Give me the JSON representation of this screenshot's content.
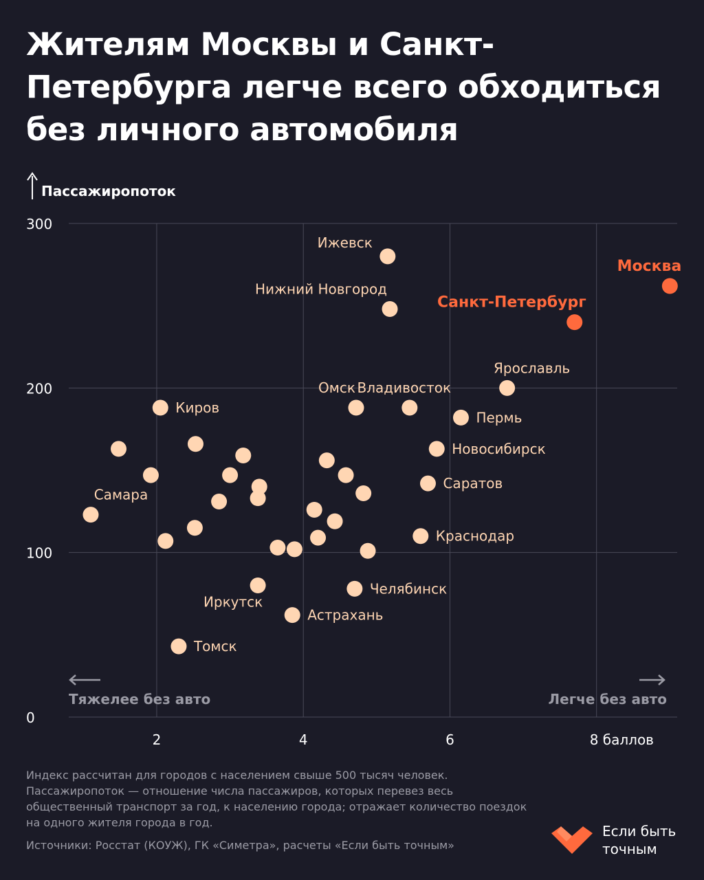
{
  "title": "Жителям Москвы и Санкт-Петербурга легче всего обходиться без личного автомобиля",
  "colors": {
    "background": "#1b1b27",
    "point": "#ffd6b3",
    "highlight": "#ff6a3d",
    "grid": "#4a4a58",
    "muted": "#9b9ba5"
  },
  "footnote": "Индекс рассчитан для городов с населением свыше 500 тысяч человек. Пассажиропоток — отношение числа пассажиров, которых перевез весь общественный транспорт за год, к населению города; отражает количество поездок на одного жителя города в год.",
  "source": "Источники: Росстат (КОУЖ), ГК «Симетра», расчеты «Если быть точным»",
  "brand": "Если быть точным",
  "chart_data": {
    "type": "scatter",
    "ylabel": "Пассажиропоток",
    "xlim": [
      0.8,
      9.1
    ],
    "ylim": [
      0,
      300
    ],
    "x_ticks": [
      {
        "value": 2,
        "label": "2"
      },
      {
        "value": 4,
        "label": "4"
      },
      {
        "value": 6,
        "label": "6"
      },
      {
        "value": 8,
        "label": "8 баллов"
      }
    ],
    "y_ticks": [
      {
        "value": 0,
        "label": "0"
      },
      {
        "value": 100,
        "label": "100"
      },
      {
        "value": 200,
        "label": "200"
      },
      {
        "value": 300,
        "label": "300"
      }
    ],
    "grid": true,
    "annotations": {
      "left": "Тяжелее без авто",
      "right": "Легче без авто"
    },
    "points": [
      {
        "x": 9.0,
        "y": 262,
        "label": "Москва",
        "highlight": true,
        "pos": "above"
      },
      {
        "x": 7.7,
        "y": 240,
        "label": "Санкт-Петербург",
        "highlight": true,
        "pos": "above"
      },
      {
        "x": 5.15,
        "y": 280,
        "label": "Ижевск",
        "pos": "left"
      },
      {
        "x": 5.18,
        "y": 248,
        "label": "Нижний Новгород",
        "pos": "above"
      },
      {
        "x": 6.78,
        "y": 200,
        "label": "Ярославль",
        "pos": "above"
      },
      {
        "x": 4.72,
        "y": 188,
        "label": "Омск",
        "pos": "above"
      },
      {
        "x": 5.45,
        "y": 188,
        "label": "Владивосток",
        "pos": "above"
      },
      {
        "x": 6.15,
        "y": 182,
        "label": "Пермь",
        "pos": "right"
      },
      {
        "x": 2.05,
        "y": 188,
        "label": "Киров",
        "pos": "right"
      },
      {
        "x": 5.82,
        "y": 163,
        "label": "Новосибирск",
        "pos": "right"
      },
      {
        "x": 5.7,
        "y": 142,
        "label": "Саратов",
        "pos": "right"
      },
      {
        "x": 1.1,
        "y": 123,
        "label": "Самара",
        "pos": "above"
      },
      {
        "x": 5.6,
        "y": 110,
        "label": "Краснодар",
        "pos": "right"
      },
      {
        "x": 4.7,
        "y": 78,
        "label": "Челябинск",
        "pos": "right"
      },
      {
        "x": 3.38,
        "y": 80,
        "label": "Иркутск",
        "pos": "below"
      },
      {
        "x": 3.85,
        "y": 62,
        "label": "Астрахань",
        "pos": "right"
      },
      {
        "x": 2.3,
        "y": 43,
        "label": "Томск",
        "pos": "right"
      },
      {
        "x": 1.48,
        "y": 163,
        "label": ""
      },
      {
        "x": 2.53,
        "y": 166,
        "label": ""
      },
      {
        "x": 1.92,
        "y": 147,
        "label": ""
      },
      {
        "x": 3.18,
        "y": 159,
        "label": ""
      },
      {
        "x": 3.0,
        "y": 147,
        "label": ""
      },
      {
        "x": 3.4,
        "y": 140,
        "label": ""
      },
      {
        "x": 3.38,
        "y": 133,
        "label": ""
      },
      {
        "x": 2.85,
        "y": 131,
        "label": ""
      },
      {
        "x": 2.52,
        "y": 115,
        "label": ""
      },
      {
        "x": 2.12,
        "y": 107,
        "label": ""
      },
      {
        "x": 3.65,
        "y": 103,
        "label": ""
      },
      {
        "x": 3.88,
        "y": 102,
        "label": ""
      },
      {
        "x": 4.32,
        "y": 156,
        "label": ""
      },
      {
        "x": 4.58,
        "y": 147,
        "label": ""
      },
      {
        "x": 4.82,
        "y": 136,
        "label": ""
      },
      {
        "x": 4.15,
        "y": 126,
        "label": ""
      },
      {
        "x": 4.43,
        "y": 119,
        "label": ""
      },
      {
        "x": 4.2,
        "y": 109,
        "label": ""
      },
      {
        "x": 4.88,
        "y": 101,
        "label": ""
      }
    ]
  }
}
